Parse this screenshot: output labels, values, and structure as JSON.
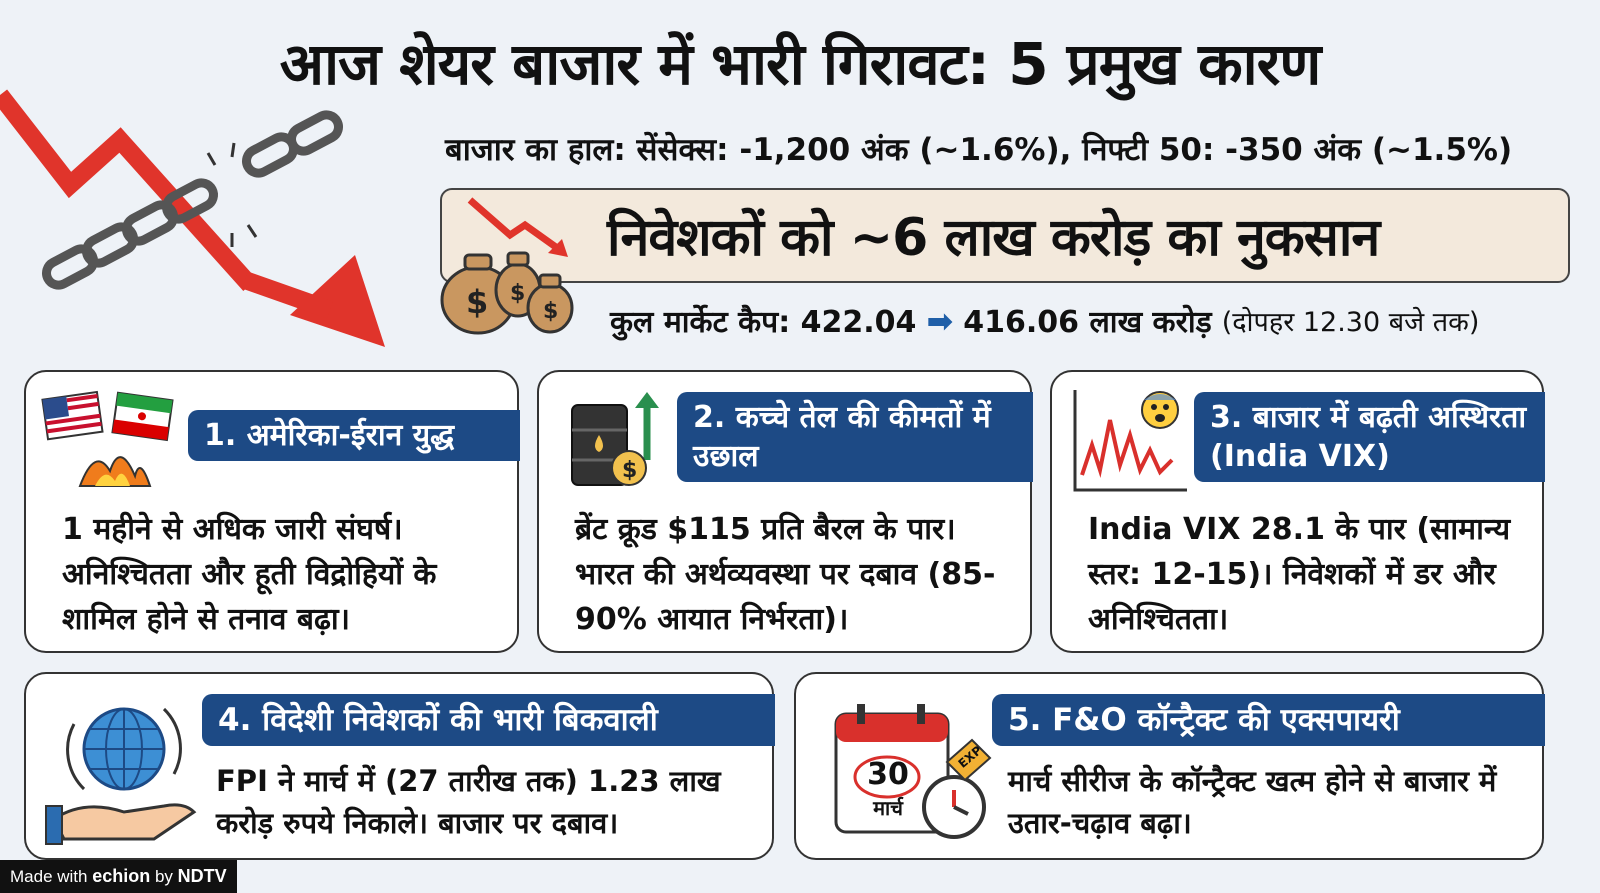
{
  "title": "आज शेयर बाजार में भारी गिरावट: 5 प्रमुख कारण",
  "market_status": "बाजार का हाल: सेंसेक्स: -1,200 अंक (~1.6%), निफ्टी 50: -350 अंक (~1.5%)",
  "loss_banner": "निवेशकों को ~6 लाख करोड़ का नुकसान",
  "market_cap": {
    "label": "कुल मार्केट कैप: 422.04",
    "value": "416.06 लाख करोड़",
    "note": "(दोपहर 12.30 बजे तक)"
  },
  "reasons": [
    {
      "heading": "1. अमेरिका-ईरान युद्ध",
      "body": "1 महीने से अधिक जारी संघर्ष। अनिश्चितता और हूती विद्रोहियों के शामिल होने से तनाव बढ़ा।",
      "icon": "flags-conflict-icon"
    },
    {
      "heading": "2. कच्चे तेल की कीमतों में उछाल",
      "body": "ब्रेंट क्रूड $115 प्रति बैरल के पार। भारत की अर्थव्यवस्था पर दबाव (85-90% आयात निर्भरता)।",
      "icon": "oil-barrel-icon"
    },
    {
      "heading": "3. बाजार में बढ़ती अस्थिरता (India VIX)",
      "body": "India VIX 28.1 के पार (सामान्य स्तर: 12-15)। निवेशकों में डर और अनिश्चितता।",
      "icon": "volatility-chart-icon"
    },
    {
      "heading": "4. विदेशी निवेशकों की भारी बिकवाली",
      "body": "FPI ने मार्च में (27 तारीख तक) 1.23 लाख करोड़ रुपये निकाले। बाजार पर दबाव।",
      "icon": "globe-hand-icon"
    },
    {
      "heading": "5. F&O कॉन्ट्रैक्ट की एक्सपायरी",
      "body": "मार्च सीरीज के कॉन्ट्रैक्ट खत्म होने से बाजार में उतार-चढ़ाव बढ़ा।",
      "icon": "calendar-clock-icon",
      "calendar_day": "30",
      "calendar_month": "मार्च",
      "tag": "EXP"
    }
  ],
  "footer": {
    "made_with": "Made with",
    "brand": "echion",
    "by": "by",
    "publisher": "NDTV"
  },
  "colors": {
    "background": "#eef2f7",
    "heading_blue": "#1d4a85",
    "down_red": "#e0342b",
    "banner_bg": "#f3e9dc"
  }
}
